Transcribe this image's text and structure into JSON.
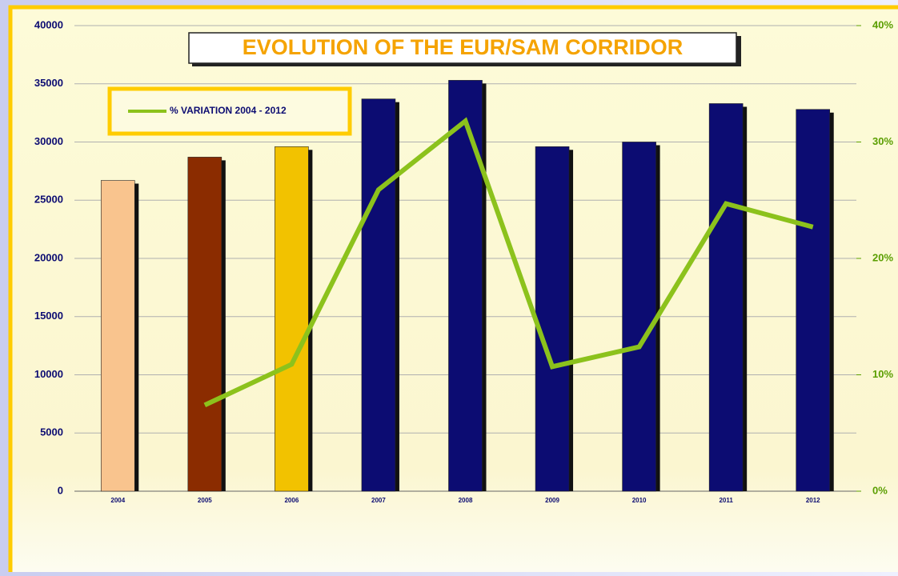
{
  "chart_data": {
    "type": "bar",
    "title": "EVOLUTION OF THE EUR/SAM CORRIDOR",
    "categories": [
      "2004",
      "2005",
      "2006",
      "2007",
      "2008",
      "2009",
      "2010",
      "2011",
      "2012"
    ],
    "series": [
      {
        "values": [
          26700,
          28700,
          29600,
          33700,
          35300,
          29600,
          30000,
          33300,
          32800
        ],
        "colors": [
          "#f9c48e",
          "#8b2c00",
          "#f2c200",
          "#0c0c72",
          "#0c0c72",
          "#0c0c72",
          "#0c0c72",
          "#0c0c72",
          "#0c0c72"
        ]
      },
      {
        "name": "% VARIATION 2004 - 2012",
        "type": "line",
        "axis": "y2",
        "color": "#8cc21c",
        "values": [
          null,
          7.4,
          10.9,
          25.9,
          31.8,
          10.7,
          12.4,
          24.7,
          22.7
        ]
      }
    ],
    "ylim": [
      0,
      40000
    ],
    "yticks": [
      0,
      5000,
      10000,
      15000,
      20000,
      25000,
      30000,
      35000,
      40000
    ],
    "y2lim": [
      0,
      40
    ],
    "y2ticks": [
      {
        "value": 0,
        "label": "0%"
      },
      {
        "value": 10,
        "label": "10%"
      },
      {
        "value": 20,
        "label": "20%"
      },
      {
        "value": 30,
        "label": "30%"
      },
      {
        "value": 40,
        "label": "40%"
      }
    ],
    "grid": true
  }
}
